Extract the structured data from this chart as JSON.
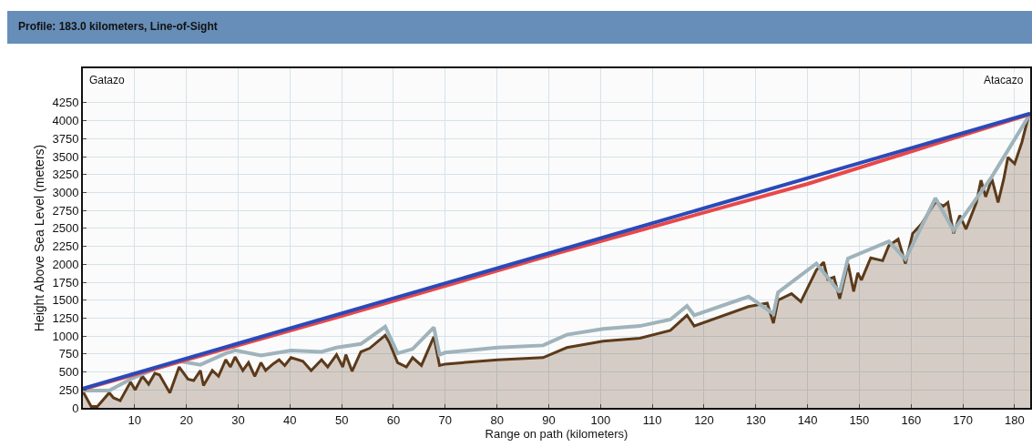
{
  "chart_data": {
    "type": "line",
    "title": "Profile: 183.0 kilometers, Line-of-Sight",
    "xlabel": "Range on path (kilometers)",
    "ylabel": "Height Above Sea Level (meters)",
    "annotations": [
      "Gatazo",
      "Atacazo"
    ],
    "xlim": [
      0,
      183
    ],
    "ylim": [
      0,
      4730
    ],
    "xticks": [
      10,
      20,
      30,
      40,
      50,
      60,
      70,
      80,
      90,
      100,
      110,
      120,
      130,
      140,
      150,
      160,
      170,
      180
    ],
    "yticks": [
      0,
      250,
      500,
      750,
      1000,
      1250,
      1500,
      1750,
      2000,
      2250,
      2500,
      2750,
      3000,
      3250,
      3500,
      3750,
      4000,
      4250
    ],
    "grid": true,
    "marker": "none",
    "line_style": "solid",
    "series": [
      {
        "type": "area",
        "color": "#5c3a1a",
        "x": [
          0,
          1.6,
          2.8,
          5.1,
          5.9,
          7.2,
          9.2,
          10.1,
          11.5,
          12.7,
          13.9,
          14.8,
          16.8,
          18.6,
          20.3,
          21.4,
          22.7,
          23.3,
          25,
          26.2,
          27.6,
          28.5,
          29.4,
          30.9,
          32,
          33.2,
          34.4,
          35.3,
          36.7,
          37.9,
          39,
          40.2,
          42.5,
          44.1,
          46.1,
          47.3,
          49,
          50.2,
          50.8,
          52,
          53.7,
          55.4,
          58.4,
          59.2,
          60.8,
          62.5,
          63.7,
          65.4,
          67.8,
          68.9,
          70,
          80.1,
          88.9,
          93.5,
          100.5,
          107.6,
          113.5,
          116.7,
          118.1,
          128.6,
          132.2,
          133.4,
          134.3,
          136.9,
          138.7,
          141.7,
          143.1,
          143.9,
          145.1,
          146.2,
          147.8,
          148.9,
          149.7,
          150.4,
          152.2,
          154.5,
          155.7,
          157.5,
          158.9,
          160.3,
          162,
          164.7,
          166.2,
          167.1,
          168.2,
          169.4,
          170.6,
          172.6,
          173.5,
          174.4,
          175.6,
          176.8,
          177.9,
          178.7,
          180,
          181.4,
          182.6,
          183
        ],
        "values": [
          230,
          20,
          20,
          210,
          140,
          100,
          360,
          250,
          440,
          330,
          480,
          460,
          210,
          570,
          400,
          380,
          520,
          310,
          520,
          440,
          670,
          570,
          710,
          520,
          630,
          440,
          630,
          520,
          610,
          670,
          590,
          700,
          650,
          520,
          670,
          570,
          740,
          570,
          740,
          510,
          780,
          830,
          1010,
          910,
          630,
          570,
          700,
          590,
          990,
          590,
          610,
          670,
          700,
          840,
          930,
          970,
          1080,
          1290,
          1140,
          1410,
          1460,
          1180,
          1500,
          1590,
          1480,
          1920,
          2030,
          1790,
          1820,
          1520,
          2010,
          1620,
          1880,
          1780,
          2090,
          2050,
          2260,
          2350,
          2010,
          2430,
          2560,
          2870,
          2810,
          2860,
          2430,
          2680,
          2490,
          2860,
          3170,
          2940,
          3190,
          2860,
          3190,
          3490,
          3400,
          3700,
          4040,
          4080
        ]
      },
      {
        "color": "#9fb3bb",
        "x": [
          0,
          5.1,
          9.2,
          13.9,
          18.6,
          22.7,
          27.6,
          29.4,
          34.4,
          40.2,
          46.1,
          49,
          53.7,
          58.4,
          60.8,
          63.7,
          67.8,
          68.9,
          70,
          80.1,
          88.9,
          93.5,
          100.5,
          107.6,
          113.5,
          116.7,
          118.1,
          128.6,
          133.4,
          134.3,
          141.7,
          146.2,
          147.8,
          155.7,
          158.9,
          164.7,
          168.2,
          175.6,
          182.6,
          183
        ],
        "values": [
          240,
          240,
          400,
          540,
          650,
          600,
          760,
          800,
          730,
          800,
          780,
          840,
          890,
          1130,
          760,
          820,
          1120,
          740,
          770,
          840,
          870,
          1020,
          1100,
          1140,
          1230,
          1420,
          1290,
          1550,
          1310,
          1610,
          2010,
          1610,
          2080,
          2320,
          2070,
          2920,
          2470,
          3220,
          4050,
          4080
        ]
      },
      {
        "color": "#e8484a",
        "x": [
          0,
          50,
          91.5,
          140,
          183
        ],
        "values": [
          260,
          1280,
          2150,
          3120,
          4090
        ]
      },
      {
        "color": "#2a4ab8",
        "x": [
          0,
          183
        ],
        "values": [
          270,
          4100
        ]
      }
    ]
  }
}
